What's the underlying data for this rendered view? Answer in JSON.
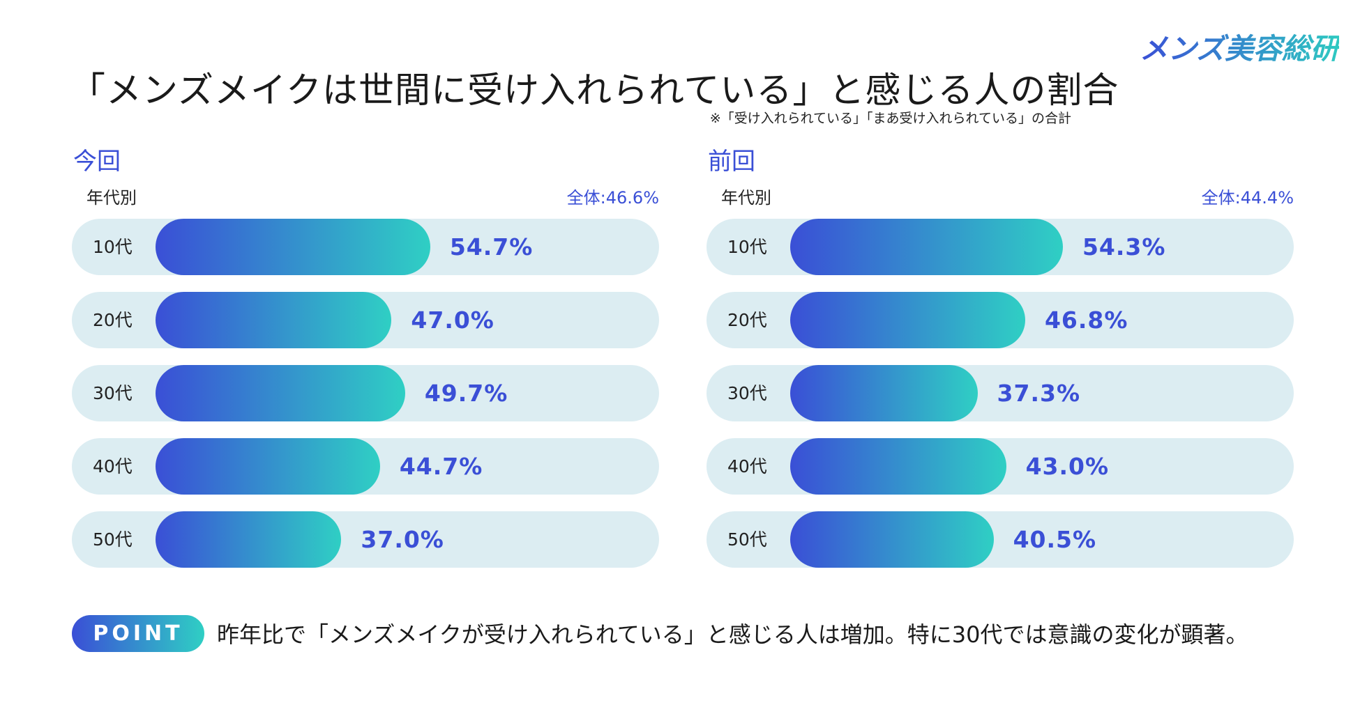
{
  "brand": {
    "logo_text": "メンズ美容総研"
  },
  "header": {
    "title": "「メンズメイクは世間に受け入れられている」と感じる人の割合",
    "note": "※「受け入れられている」「まあ受け入れられている」の合計"
  },
  "colors": {
    "accent": "#3a4fd6",
    "accent_end": "#2fcfc4",
    "track": "#dcedf2"
  },
  "chart_data": [
    {
      "type": "bar",
      "orientation": "horizontal",
      "title": "今回",
      "group_label": "年代別",
      "total_label": "全体:46.6%",
      "total": 46.6,
      "categories": [
        "10代",
        "20代",
        "30代",
        "40代",
        "50代"
      ],
      "values": [
        54.7,
        47.0,
        49.7,
        44.7,
        37.0
      ],
      "value_labels": [
        "54.7%",
        "47.0%",
        "49.7%",
        "44.7%",
        "37.0%"
      ],
      "xlim": [
        0,
        100
      ]
    },
    {
      "type": "bar",
      "orientation": "horizontal",
      "title": "前回",
      "group_label": "年代別",
      "total_label": "全体:44.4%",
      "total": 44.4,
      "categories": [
        "10代",
        "20代",
        "30代",
        "40代",
        "50代"
      ],
      "values": [
        54.3,
        46.8,
        37.3,
        43.0,
        40.5
      ],
      "value_labels": [
        "54.3%",
        "46.8%",
        "37.3%",
        "43.0%",
        "40.5%"
      ],
      "xlim": [
        0,
        100
      ]
    }
  ],
  "point": {
    "badge": "POINT",
    "text": "昨年比で「メンズメイクが受け入れられている」と感じる人は増加。特に30代では意識の変化が顕著。"
  }
}
